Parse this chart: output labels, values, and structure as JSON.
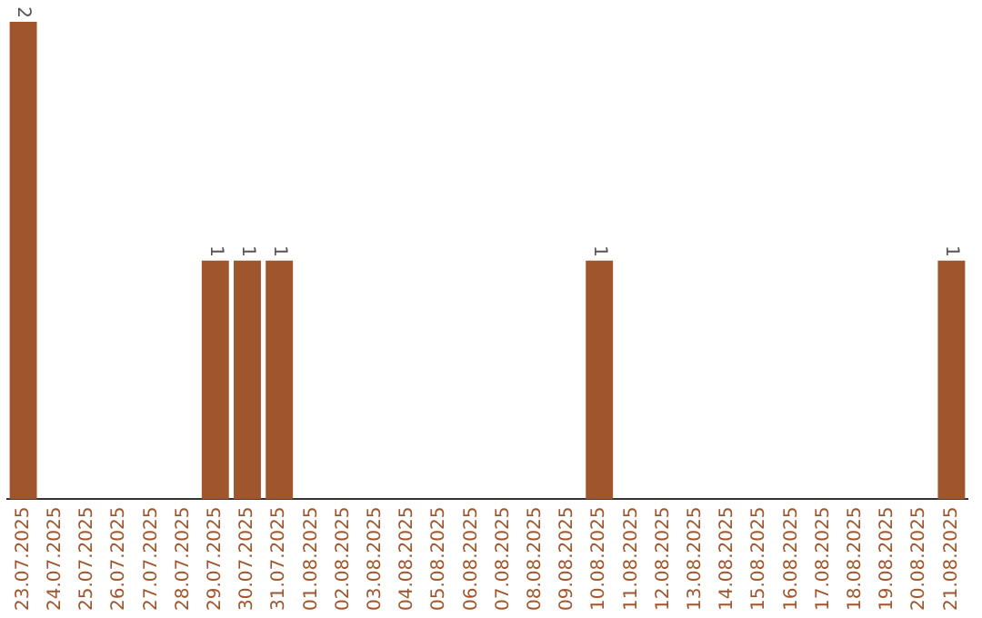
{
  "chart_data": {
    "type": "bar",
    "categories": [
      "23.07.2025",
      "24.07.2025",
      "25.07.2025",
      "26.07.2025",
      "27.07.2025",
      "28.07.2025",
      "29.07.2025",
      "30.07.2025",
      "31.07.2025",
      "01.08.2025",
      "02.08.2025",
      "03.08.2025",
      "04.08.2025",
      "05.08.2025",
      "06.08.2025",
      "07.08.2025",
      "08.08.2025",
      "09.08.2025",
      "10.08.2025",
      "11.08.2025",
      "12.08.2025",
      "13.08.2025",
      "14.08.2025",
      "15.08.2025",
      "16.08.2025",
      "17.08.2025",
      "18.08.2025",
      "19.08.2025",
      "20.08.2025",
      "21.08.2025"
    ],
    "values": [
      2,
      0,
      0,
      0,
      0,
      0,
      1,
      1,
      1,
      0,
      0,
      0,
      0,
      0,
      0,
      0,
      0,
      0,
      1,
      0,
      0,
      0,
      0,
      0,
      0,
      0,
      0,
      0,
      0,
      1
    ],
    "value_labels": [
      "2",
      null,
      null,
      null,
      null,
      null,
      "1",
      "1",
      "1",
      null,
      null,
      null,
      null,
      null,
      null,
      null,
      null,
      null,
      "1",
      null,
      null,
      null,
      null,
      null,
      null,
      null,
      null,
      null,
      null,
      "1"
    ],
    "color": "#a0562c",
    "tick_labels": "x",
    "grid": false,
    "legend": false
  }
}
